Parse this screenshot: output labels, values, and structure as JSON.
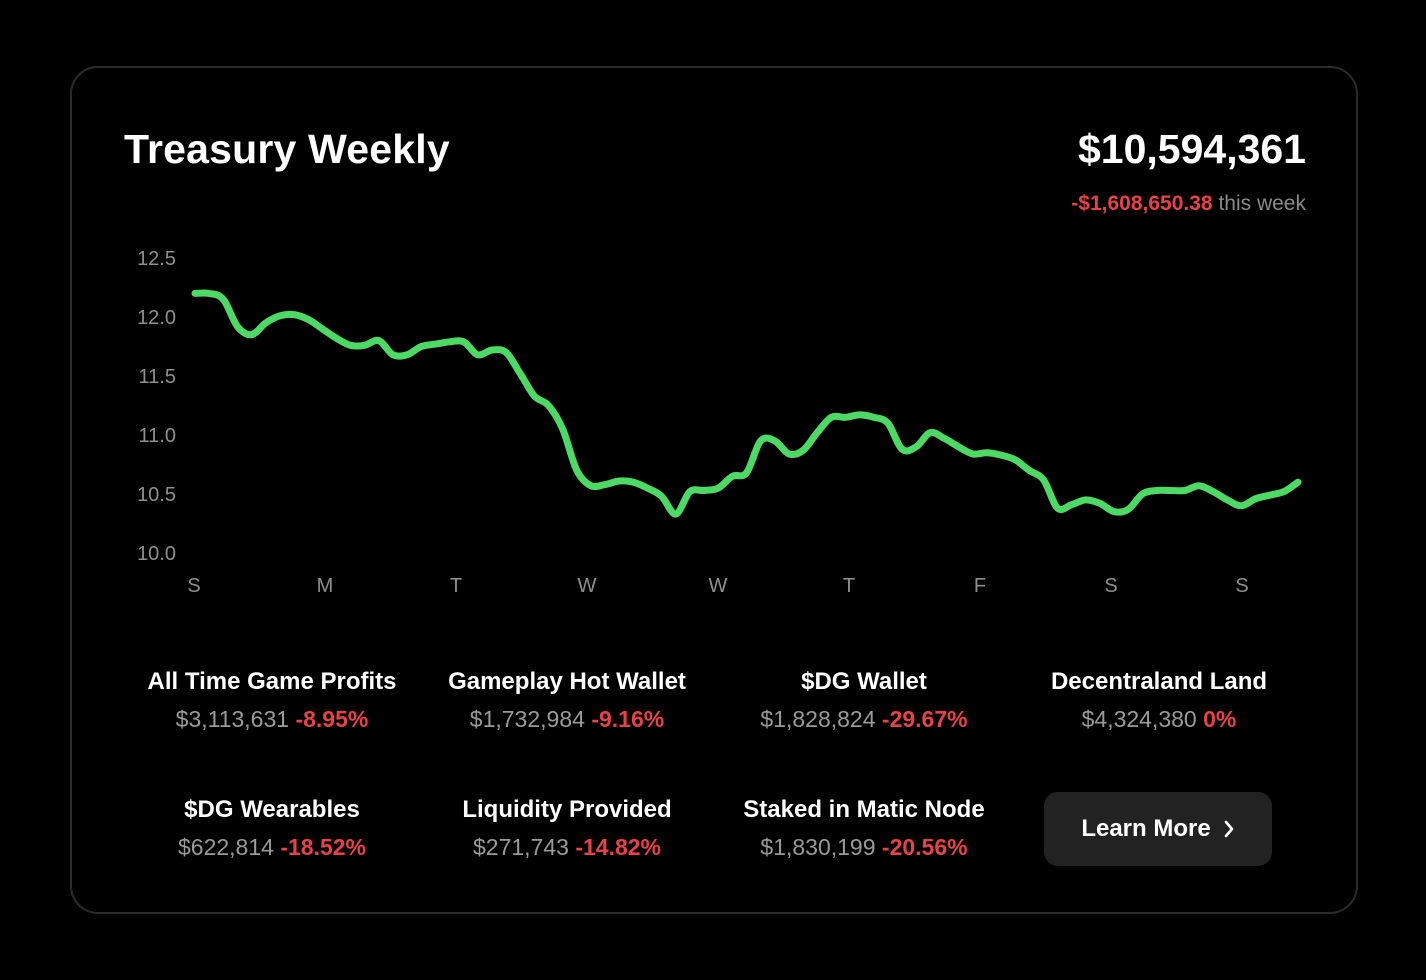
{
  "header": {
    "title": "Treasury Weekly",
    "total": "$10,594,361",
    "weekly_change": "-$1,608,650.38",
    "weekly_suffix": "this week"
  },
  "colors": {
    "background": "#000000",
    "line": "#4cd964",
    "negative": "#e8414a",
    "muted_text": "#9a9a9a"
  },
  "chart_data": {
    "type": "line",
    "title": "",
    "xlabel": "",
    "ylabel": "",
    "ylim": [
      10.0,
      12.5
    ],
    "yticks": [
      "12.5",
      "12.0",
      "11.5",
      "11.0",
      "10.5",
      "10.0"
    ],
    "xticks": [
      "S",
      "M",
      "T",
      "W",
      "W",
      "T",
      "F",
      "S",
      "S"
    ],
    "grid": false,
    "series": [
      {
        "values": [
          12.2,
          12.2,
          12.15,
          11.92,
          11.85,
          11.95,
          12.01,
          12.02,
          11.98,
          11.9,
          11.82,
          11.76,
          11.76,
          11.8,
          11.68,
          11.68,
          11.75,
          11.77,
          11.79,
          11.79,
          11.68,
          11.72,
          11.7,
          11.52,
          11.33,
          11.25,
          11.05,
          10.7,
          10.57,
          10.58,
          10.61,
          10.6,
          10.55,
          10.48,
          10.33,
          10.52,
          10.53,
          10.55,
          10.65,
          10.68,
          10.95,
          10.95,
          10.84,
          10.87,
          11.02,
          11.15,
          11.15,
          11.17,
          11.15,
          11.1,
          10.88,
          10.9,
          11.02,
          10.97,
          10.9,
          10.84,
          10.85,
          10.83,
          10.79,
          10.7,
          10.62,
          10.38,
          10.41,
          10.45,
          10.42,
          10.35,
          10.37,
          10.5,
          10.53,
          10.53,
          10.53,
          10.57,
          10.52,
          10.45,
          10.4,
          10.46,
          10.49,
          10.52,
          10.6
        ]
      }
    ]
  },
  "stats": [
    {
      "label": "All Time Game Profits",
      "value": "$3,113,631",
      "change": "-8.95%"
    },
    {
      "label": "Gameplay Hot Wallet",
      "value": "$1,732,984",
      "change": "-9.16%"
    },
    {
      "label": "$DG Wallet",
      "value": "$1,828,824",
      "change": "-29.67%"
    },
    {
      "label": "Decentraland Land",
      "value": "$4,324,380",
      "change": "0%"
    },
    {
      "label": "$DG Wearables",
      "value": "$622,814",
      "change": "-18.52%"
    },
    {
      "label": "Liquidity Provided",
      "value": "$271,743",
      "change": "-14.82%"
    },
    {
      "label": "Staked in Matic Node",
      "value": "$1,830,199",
      "change": "-20.56%"
    }
  ],
  "learn_more": {
    "label": "Learn More",
    "icon": "chevron-right-icon"
  }
}
